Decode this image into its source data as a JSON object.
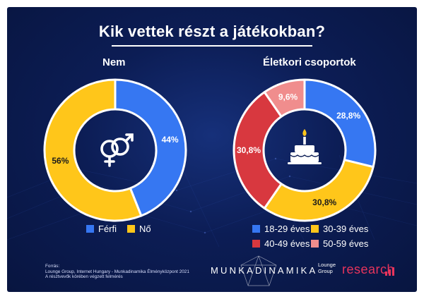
{
  "header": {
    "title": "Kik vettek részt a játékokban?"
  },
  "colors": {
    "blue": "#3677f2",
    "yellow": "#ffc61a",
    "red": "#d8383f",
    "pink": "#f08d8d",
    "background": "#0c1d55"
  },
  "chart_data": [
    {
      "type": "pie",
      "donut": true,
      "title": "Nem",
      "icon": "gender-symbols-icon",
      "series": [
        {
          "name": "Férfi",
          "value": 44,
          "label": "44%",
          "color": "#3677f2"
        },
        {
          "name": "Nő",
          "value": 56,
          "label": "56%",
          "color": "#ffc61a"
        }
      ],
      "legend": "bottom"
    },
    {
      "type": "pie",
      "donut": true,
      "title": "Életkori csoportok",
      "icon": "birthday-cake-icon",
      "series": [
        {
          "name": "18-29 éves",
          "value": 28.8,
          "label": "28,8%",
          "color": "#3677f2"
        },
        {
          "name": "30-39 éves",
          "value": 30.8,
          "label": "30,8%",
          "color": "#ffc61a"
        },
        {
          "name": "40-49 éves",
          "value": 30.8,
          "label": "30,8%",
          "color": "#d8383f"
        },
        {
          "name": "50-59 éves",
          "value": 9.6,
          "label": "9,6%",
          "color": "#f08d8d"
        }
      ],
      "legend": "bottom"
    }
  ],
  "footer": {
    "source_lines": [
      "Forrás:",
      "Lounge Group, Internet Hungary - Munkadinamika Élményközpont 2021",
      "A résztvevők körében végzett felmérés"
    ],
    "logo_munkadinamika": "MUNKADINAMIKA",
    "logo_lounge_line1": "Lounge",
    "logo_lounge_line2": "Group",
    "logo_research": "research"
  }
}
